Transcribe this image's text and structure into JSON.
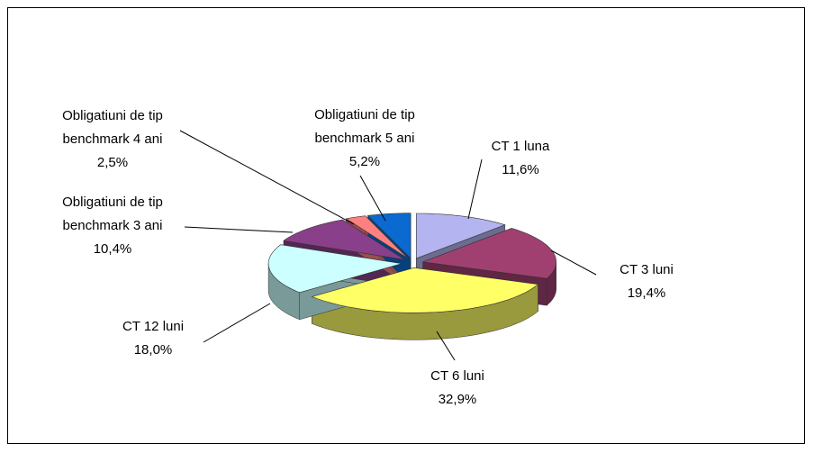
{
  "chart_data": {
    "type": "pie",
    "categories": [
      "CT 1 luna",
      "CT 3 luni",
      "CT 6 luni",
      "CT 12 luni",
      "Obligatiuni de tip benchmark 3 ani",
      "Obligatiuni de tip benchmark 4 ani",
      "Obligatiuni de tip benchmark 5 ani"
    ],
    "values": [
      11.6,
      19.4,
      32.9,
      18.0,
      10.4,
      2.5,
      5.2
    ],
    "value_labels": [
      "11,6%",
      "19,4%",
      "32,9%",
      "18,0%",
      "10,4%",
      "2,5%",
      "5,2%"
    ],
    "colors": [
      "#b4b4f0",
      "#a04070",
      "#ffff66",
      "#ccffff",
      "#8a3f8a",
      "#ff8080",
      "#0a6ad0"
    ]
  }
}
